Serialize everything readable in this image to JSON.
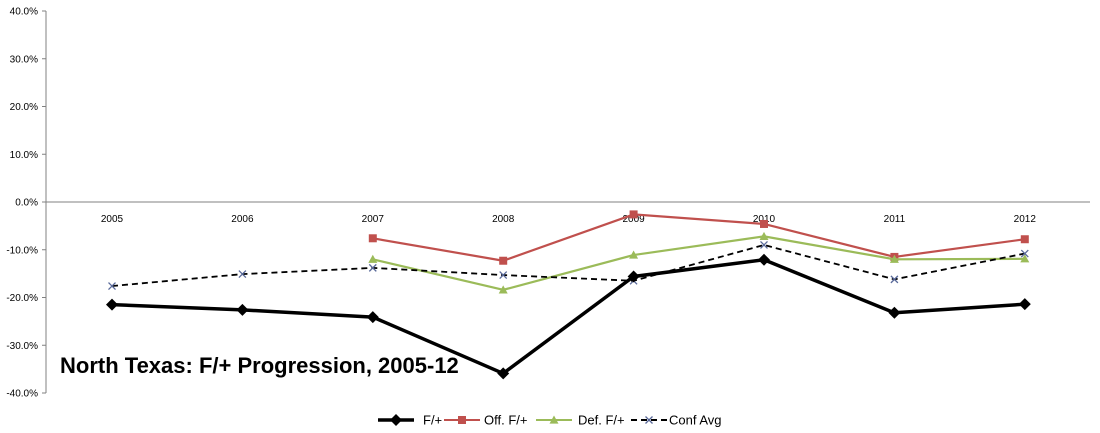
{
  "chart_data": {
    "type": "line",
    "title": "North Texas: F/+ Progression, 2005-12",
    "categories": [
      "2005",
      "2006",
      "2007",
      "2008",
      "2009",
      "2010",
      "2011",
      "2012"
    ],
    "ylim": [
      -40,
      40
    ],
    "yticks": [
      40,
      30,
      20,
      10,
      0,
      -10,
      -20,
      -30,
      -40
    ],
    "ytick_labels": [
      "40.0%",
      "30.0%",
      "20.0%",
      "10.0%",
      "0.0%",
      "-10.0%",
      "-20.0%",
      "-30.0%",
      "-40.0%"
    ],
    "grid": false,
    "legend_position": "bottom",
    "series": [
      {
        "name": "F/+",
        "color": "#000000",
        "marker": "diamond",
        "dash": false,
        "values": [
          -21.5,
          -22.6,
          -24.1,
          -35.9,
          -15.6,
          -12.1,
          -23.2,
          -21.4
        ]
      },
      {
        "name": "Off. F/+",
        "color": "#C0504D",
        "marker": "square",
        "dash": false,
        "values": [
          null,
          null,
          -7.6,
          -12.3,
          -2.6,
          -4.6,
          -11.5,
          -7.8
        ]
      },
      {
        "name": "Def. F/+",
        "color": "#9BBB59",
        "marker": "triangle",
        "dash": false,
        "values": [
          null,
          null,
          -12.0,
          -18.4,
          -11.1,
          -7.2,
          -12.0,
          -11.9
        ]
      },
      {
        "name": "Conf Avg",
        "color": "#000000",
        "marker": "x",
        "dash": true,
        "values": [
          -17.6,
          -15.1,
          -13.8,
          -15.3,
          -16.5,
          -9.0,
          -16.2,
          -10.8
        ]
      }
    ]
  }
}
